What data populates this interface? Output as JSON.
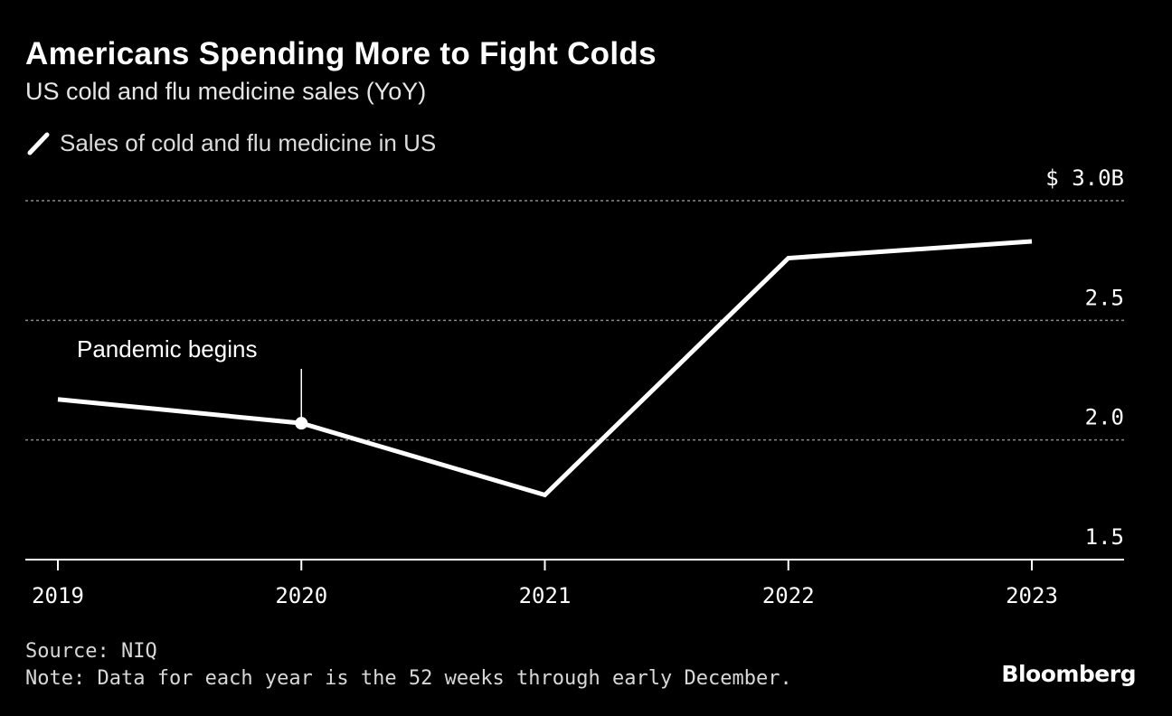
{
  "chart_data": {
    "type": "line",
    "title": "Americans Spending More to Fight Colds",
    "subtitle": "US cold and flu medicine sales (YoY)",
    "categories": [
      "2019",
      "2020",
      "2021",
      "2022",
      "2023"
    ],
    "series": [
      {
        "name": "Sales of cold and flu medicine in US",
        "values": [
          2.17,
          2.07,
          1.77,
          2.76,
          2.83
        ]
      }
    ],
    "ylim": [
      1.5,
      3.0
    ],
    "yticks": [
      1.5,
      2.0,
      2.5,
      3.0
    ],
    "ytick_labels": [
      "1.5",
      "2.0",
      "2.5",
      "$ 3.0B"
    ],
    "xlabel": "",
    "ylabel": "",
    "grid": true,
    "legend_position": "top-left",
    "annotations": [
      {
        "text": "Pandemic begins",
        "category": "2020"
      }
    ],
    "colors": {
      "background": "#000000",
      "line": "#ffffff",
      "grid": "#8a8a8a",
      "axis": "#ffffff",
      "text": "#ffffff"
    }
  },
  "footer": {
    "source": "Source: NIQ",
    "note": "Note: Data for each year is the 52 weeks through early December."
  },
  "brand": "Bloomberg"
}
